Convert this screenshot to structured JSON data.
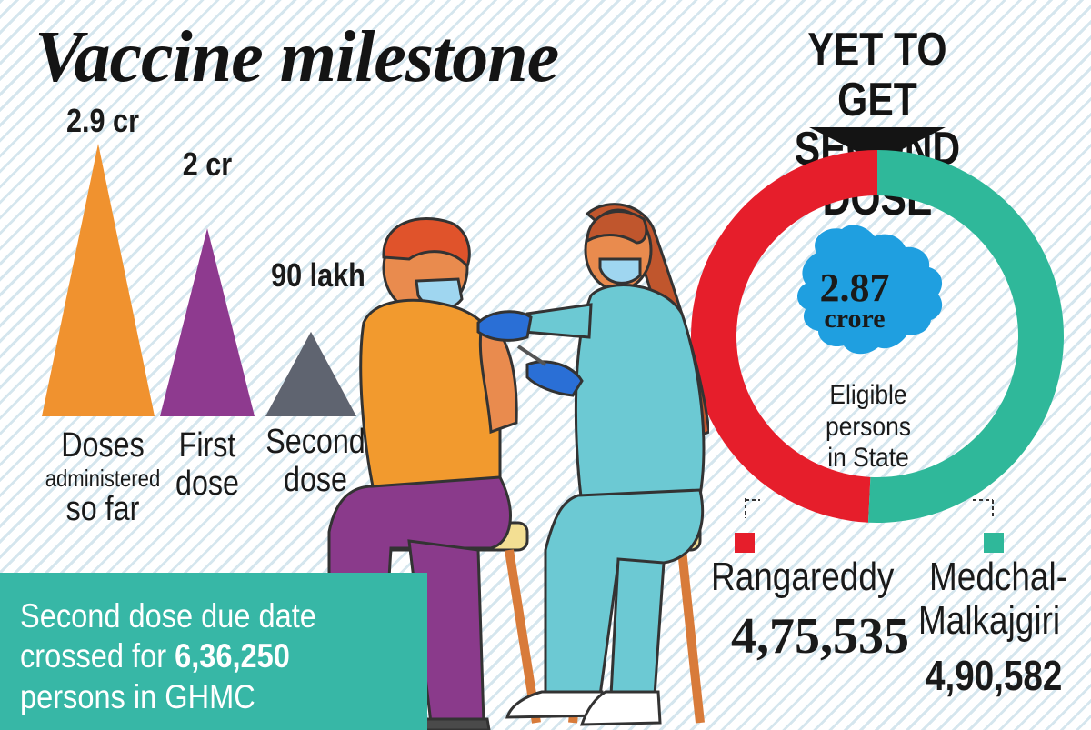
{
  "title": "Vaccine milestone",
  "chart_data": [
    {
      "type": "bar",
      "categories": [
        "Doses administered so far",
        "First dose",
        "Second dose"
      ],
      "values": [
        2.9,
        2.0,
        0.9
      ],
      "value_labels": [
        "2.9 cr",
        "2 cr",
        "90 lakh"
      ],
      "unit": "crore",
      "colors": [
        "#f0922f",
        "#8e3a8f",
        "#5f6470"
      ]
    },
    {
      "type": "pie",
      "title": "YET TO GET SECOND DOSE",
      "center_value": "2.87",
      "center_unit": "crore",
      "center_caption": "Eligible persons in State",
      "slices": [
        {
          "label": "Rangareddy",
          "value": 475535,
          "display": "4,75,535",
          "color": "#e61e2b"
        },
        {
          "label": "Medchal-Malkajgiri",
          "value": 490582,
          "display": "4,90,582",
          "color": "#2fb89a"
        }
      ]
    }
  ],
  "bars_text": {
    "v1": "2.9 cr",
    "v2": "2 cr",
    "v3": "90 lakh",
    "l1a": "Doses",
    "l1b": "administered",
    "l1c": "so far",
    "l2a": "First",
    "l2b": "dose",
    "l3a": "Second",
    "l3b": "dose"
  },
  "donut_text": {
    "title_line1": "YET TO GET",
    "title_line2": "SECOND DOSE",
    "center_value": "2.87",
    "center_unit": "crore",
    "caption_line1": "Eligible persons",
    "caption_line2": "in State"
  },
  "districts": {
    "left_name": "Rangareddy",
    "left_value": "4,75,535",
    "right_name_line1": "Medchal-",
    "right_name_line2": "Malkajgiri",
    "right_value": "4,90,582"
  },
  "ghmc": {
    "line1": "Second dose due date",
    "line2_prefix": "crossed for ",
    "line2_number": "6,36,250",
    "line3": "persons in GHMC"
  },
  "colors": {
    "orange": "#f0922f",
    "purple": "#8e3a8f",
    "grey": "#5f6470",
    "red": "#e61e2b",
    "teal": "#2fb89a",
    "banner": "#37b7a6",
    "map": "#1f9fe0"
  }
}
